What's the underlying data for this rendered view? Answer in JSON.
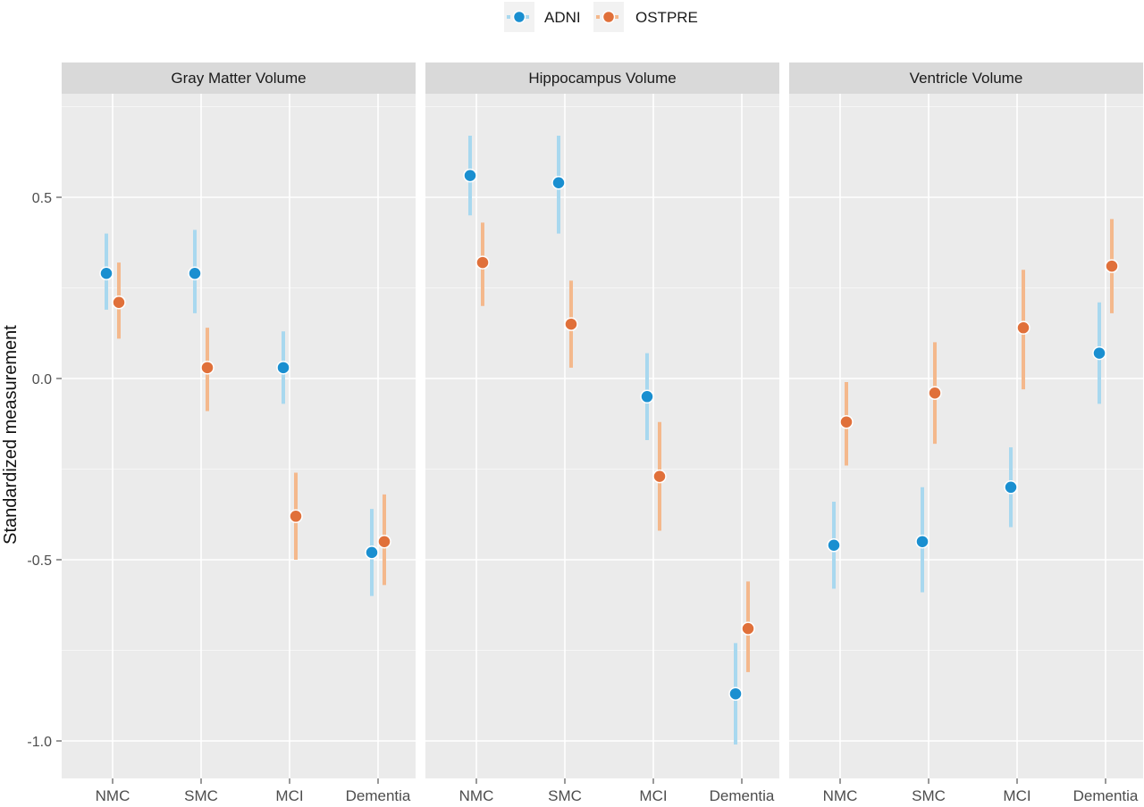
{
  "chart_data": {
    "type": "scatter",
    "ylabel": "Standardized measurement",
    "categories": [
      "NMC",
      "SMC",
      "MCI",
      "Dementia"
    ],
    "ylim": [
      -1.1,
      0.75
    ],
    "yticks": [
      -1.0,
      -0.5,
      0.0,
      0.5
    ],
    "ytick_labels": [
      "-1.0",
      "-0.5",
      "0.0",
      "0.5"
    ],
    "grid": true,
    "legend_position": "top",
    "series_colors": {
      "ADNI": {
        "point": "#1a8fd0",
        "bar": "#a8d8ef"
      },
      "OSTPRE": {
        "point": "#e0703a",
        "bar": "#f4b88c"
      }
    },
    "legend": [
      {
        "name": "ADNI",
        "color": "#1a8fd0"
      },
      {
        "name": "OSTPRE",
        "color": "#e0703a"
      }
    ],
    "panels": [
      {
        "title": "Gray  Matter Volume",
        "series": [
          {
            "name": "ADNI",
            "mean": [
              0.29,
              0.29,
              0.03,
              -0.48
            ],
            "lower": [
              0.19,
              0.18,
              -0.07,
              -0.6
            ],
            "upper": [
              0.4,
              0.41,
              0.13,
              -0.36
            ]
          },
          {
            "name": "OSTPRE",
            "mean": [
              0.21,
              0.03,
              -0.38,
              -0.45
            ],
            "lower": [
              0.11,
              -0.09,
              -0.5,
              -0.57
            ],
            "upper": [
              0.32,
              0.14,
              -0.26,
              -0.32
            ]
          }
        ]
      },
      {
        "title": "Hippocampus Volume",
        "series": [
          {
            "name": "ADNI",
            "mean": [
              0.56,
              0.54,
              -0.05,
              -0.87
            ],
            "lower": [
              0.45,
              0.4,
              -0.17,
              -1.01
            ],
            "upper": [
              0.67,
              0.67,
              0.07,
              -0.73
            ]
          },
          {
            "name": "OSTPRE",
            "mean": [
              0.32,
              0.15,
              -0.27,
              -0.69
            ],
            "lower": [
              0.2,
              0.03,
              -0.42,
              -0.81
            ],
            "upper": [
              0.43,
              0.27,
              -0.12,
              -0.56
            ]
          }
        ]
      },
      {
        "title": "Ventricle Volume",
        "series": [
          {
            "name": "ADNI",
            "mean": [
              -0.46,
              -0.45,
              -0.3,
              0.07
            ],
            "lower": [
              -0.58,
              -0.59,
              -0.41,
              -0.07
            ],
            "upper": [
              -0.34,
              -0.3,
              -0.19,
              0.21
            ]
          },
          {
            "name": "OSTPRE",
            "mean": [
              -0.12,
              -0.04,
              0.14,
              0.31
            ],
            "lower": [
              -0.24,
              -0.18,
              -0.03,
              0.18
            ],
            "upper": [
              -0.01,
              0.1,
              0.3,
              0.44
            ]
          }
        ]
      }
    ]
  }
}
